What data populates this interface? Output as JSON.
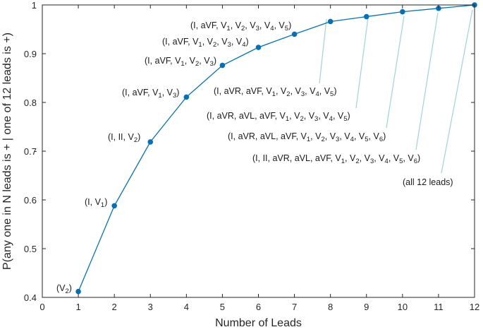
{
  "chart_data": {
    "type": "line",
    "xlabel": "Number of Leads",
    "ylabel": "P(any one in N leads is + | one of 12 leads is +)",
    "xlim": [
      0,
      12
    ],
    "ylim": [
      0.4,
      1
    ],
    "x_ticks": [
      "0",
      "1",
      "2",
      "3",
      "4",
      "5",
      "6",
      "7",
      "8",
      "9",
      "10",
      "11",
      "12"
    ],
    "y_ticks": [
      "0.4",
      "0.5",
      "0.6",
      "0.7",
      "0.8",
      "0.9",
      "1"
    ],
    "grid": false,
    "box": true,
    "series": [
      {
        "color": "#0072BD",
        "marker": "circle",
        "x": [
          1,
          2,
          3,
          4,
          5,
          6,
          7,
          8,
          9,
          10,
          11,
          12
        ],
        "y": [
          0.412,
          0.588,
          0.719,
          0.811,
          0.876,
          0.913,
          0.94,
          0.966,
          0.976,
          0.986,
          0.993,
          1.0
        ]
      }
    ],
    "annotations": [
      {
        "x": 1,
        "segs": [
          [
            "(V",
            ""
          ],
          [
            "2",
            "s"
          ],
          [
            ")",
            ""
          ]
        ]
      },
      {
        "x": 2,
        "segs": [
          [
            "(I, V",
            ""
          ],
          [
            "1",
            "s"
          ],
          [
            ")",
            ""
          ]
        ]
      },
      {
        "x": 3,
        "segs": [
          [
            "(I, II, V",
            ""
          ],
          [
            "2",
            "s"
          ],
          [
            ")",
            ""
          ]
        ]
      },
      {
        "x": 4,
        "segs": [
          [
            "(I, aVF, V",
            ""
          ],
          [
            "1",
            "s"
          ],
          [
            ", V",
            ""
          ],
          [
            "3",
            "s"
          ],
          [
            ")",
            ""
          ]
        ]
      },
      {
        "x": 5,
        "segs": [
          [
            "(I, aVF, V",
            ""
          ],
          [
            "1",
            "s"
          ],
          [
            ", V",
            ""
          ],
          [
            "2",
            "s"
          ],
          [
            ", V",
            ""
          ],
          [
            "3",
            "s"
          ],
          [
            ")",
            ""
          ]
        ]
      },
      {
        "x": 6,
        "segs": [
          [
            "(I, aVF, V",
            ""
          ],
          [
            "1",
            "s"
          ],
          [
            ", V",
            ""
          ],
          [
            "2",
            "s"
          ],
          [
            ", V",
            ""
          ],
          [
            "3",
            "s"
          ],
          [
            ", V",
            ""
          ],
          [
            "4",
            "s"
          ],
          [
            ")",
            ""
          ]
        ]
      },
      {
        "x": 7,
        "segs": [
          [
            "(I, aVF, V",
            ""
          ],
          [
            "1",
            "s"
          ],
          [
            ", V",
            ""
          ],
          [
            "2",
            "s"
          ],
          [
            ", V",
            ""
          ],
          [
            "3",
            "s"
          ],
          [
            ", V",
            ""
          ],
          [
            "4",
            "s"
          ],
          [
            ", V",
            ""
          ],
          [
            "5",
            "s"
          ],
          [
            ")",
            ""
          ]
        ]
      },
      {
        "x": 8,
        "segs": [
          [
            "(I, aVR, aVF, V",
            ""
          ],
          [
            "1",
            "s"
          ],
          [
            ", V",
            ""
          ],
          [
            "2",
            "s"
          ],
          [
            ", V",
            ""
          ],
          [
            "3",
            "s"
          ],
          [
            ", V",
            ""
          ],
          [
            "4",
            "s"
          ],
          [
            ", V",
            ""
          ],
          [
            "5",
            "s"
          ],
          [
            ")",
            ""
          ]
        ]
      },
      {
        "x": 9,
        "segs": [
          [
            "(I, aVR, aVL, aVF, V",
            ""
          ],
          [
            "1",
            "s"
          ],
          [
            ", V",
            ""
          ],
          [
            "2",
            "s"
          ],
          [
            ", V",
            ""
          ],
          [
            "3",
            "s"
          ],
          [
            ", V",
            ""
          ],
          [
            "4",
            "s"
          ],
          [
            ", V",
            ""
          ],
          [
            "5",
            "s"
          ],
          [
            ")",
            ""
          ]
        ]
      },
      {
        "x": 10,
        "segs": [
          [
            "(I, aVR, aVL, aVF, V",
            ""
          ],
          [
            "1",
            "s"
          ],
          [
            ", V",
            ""
          ],
          [
            "2",
            "s"
          ],
          [
            ", V",
            ""
          ],
          [
            "3",
            "s"
          ],
          [
            ", V",
            ""
          ],
          [
            "4",
            "s"
          ],
          [
            ", V",
            ""
          ],
          [
            "5",
            "s"
          ],
          [
            ", V",
            ""
          ],
          [
            "6",
            "s"
          ],
          [
            ")",
            ""
          ]
        ]
      },
      {
        "x": 11,
        "segs": [
          [
            "(I, II, aVR, aVL, aVF, V",
            ""
          ],
          [
            "1",
            "s"
          ],
          [
            ", V",
            ""
          ],
          [
            "2",
            "s"
          ],
          [
            ", V",
            ""
          ],
          [
            "3",
            "s"
          ],
          [
            ", V",
            ""
          ],
          [
            "4",
            "s"
          ],
          [
            ", V",
            ""
          ],
          [
            "5",
            "s"
          ],
          [
            ", V",
            ""
          ],
          [
            "6",
            "s"
          ],
          [
            ")",
            ""
          ]
        ]
      },
      {
        "x": 12,
        "segs": [
          [
            "(all 12 leads)",
            ""
          ]
        ]
      }
    ],
    "stray_mark": "-",
    "colors": {
      "line": "#0072BD",
      "leader": "#9ED3E0",
      "axis": "#262626"
    }
  }
}
